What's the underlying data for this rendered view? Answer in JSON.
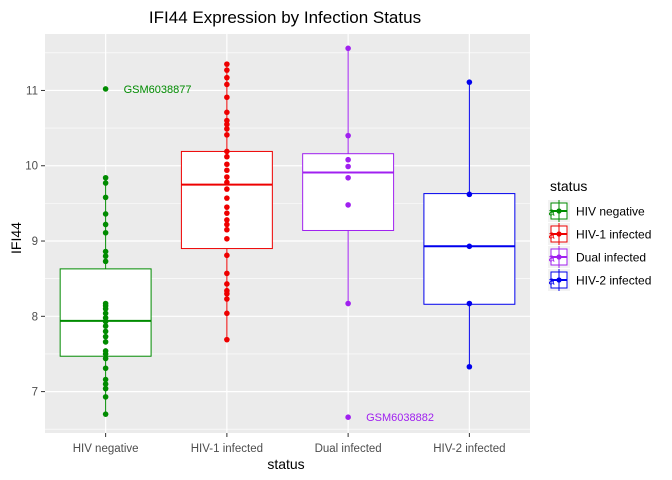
{
  "chart_data": {
    "type": "boxplot",
    "title": "IFI44 Expression by Infection Status",
    "xlabel": "status",
    "ylabel": "IFI44",
    "ylim": [
      6.45,
      11.75
    ],
    "yticks": [
      7,
      8,
      9,
      10,
      11
    ],
    "categories": [
      "HIV negative",
      "HIV-1 infected",
      "Dual infected",
      "HIV-2 infected"
    ],
    "legend": {
      "title": "status",
      "placement": "right",
      "glyph": "a"
    },
    "grid": true,
    "series": [
      {
        "name": "HIV negative",
        "color": "#008B00",
        "box": {
          "whisker_low": 6.7,
          "q1": 7.47,
          "median": 7.94,
          "q3": 8.63,
          "whisker_high": 9.84
        },
        "points": [
          6.7,
          6.93,
          7.04,
          7.1,
          7.16,
          7.31,
          7.44,
          7.5,
          7.54,
          7.66,
          7.73,
          7.8,
          7.87,
          7.93,
          7.98,
          8.04,
          8.1,
          8.14,
          8.17,
          8.73,
          8.8,
          8.86,
          9.11,
          9.22,
          9.36,
          9.58,
          9.77,
          9.84,
          11.02
        ]
      },
      {
        "name": "HIV-1 infected",
        "color": "#EE0000",
        "box": {
          "whisker_low": 7.69,
          "q1": 8.9,
          "median": 9.75,
          "q3": 10.19,
          "whisker_high": 11.35
        },
        "points": [
          7.69,
          8.04,
          8.23,
          8.3,
          8.34,
          8.43,
          8.57,
          8.81,
          9.03,
          9.15,
          9.22,
          9.28,
          9.37,
          9.45,
          9.57,
          9.69,
          9.78,
          9.85,
          9.94,
          10.02,
          10.12,
          10.19,
          10.41,
          10.49,
          10.55,
          10.6,
          10.71,
          10.91,
          11.08,
          11.17,
          11.27,
          11.35
        ]
      },
      {
        "name": "Dual infected",
        "color": "#A020F0",
        "box": {
          "whisker_low": 8.17,
          "q1": 9.14,
          "median": 9.91,
          "q3": 10.16,
          "whisker_high": 11.56
        },
        "points": [
          6.66,
          8.17,
          9.48,
          9.84,
          9.99,
          10.08,
          10.4,
          11.56
        ]
      },
      {
        "name": "HIV-2 infected",
        "color": "#0000EE",
        "box": {
          "whisker_low": 7.33,
          "q1": 8.16,
          "median": 8.93,
          "q3": 9.63,
          "whisker_high": 11.11
        },
        "points": [
          7.33,
          8.17,
          8.93,
          9.62,
          11.11
        ]
      }
    ],
    "annotations": [
      {
        "text": "GSM6038877",
        "category": "HIV negative",
        "y": 11.02,
        "color": "#008B00"
      },
      {
        "text": "GSM6038882",
        "category": "Dual infected",
        "y": 6.66,
        "color": "#A020F0"
      }
    ]
  }
}
